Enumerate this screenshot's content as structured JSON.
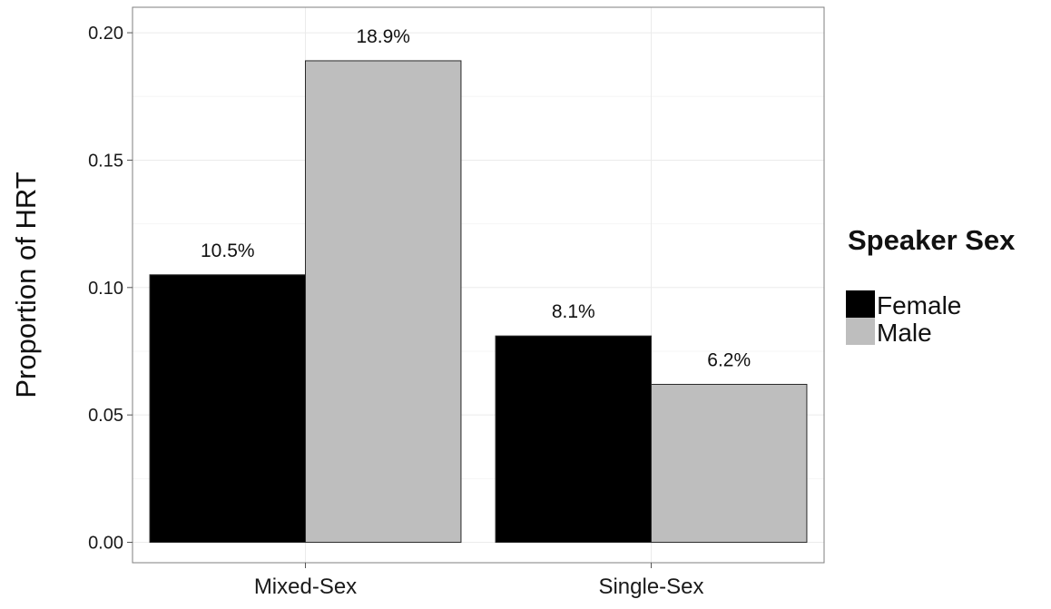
{
  "chart_data": {
    "type": "bar",
    "title": "",
    "xlabel": "",
    "ylabel": "Proportion of HRT",
    "categories": [
      "Mixed-Sex",
      "Single-Sex"
    ],
    "series": [
      {
        "name": "Female",
        "values": [
          0.105,
          0.081
        ],
        "labels": [
          "10.5%",
          "8.1%"
        ],
        "color": "#000000"
      },
      {
        "name": "Male",
        "values": [
          0.189,
          0.062
        ],
        "labels": [
          "18.9%",
          "6.2%"
        ],
        "color": "#bebebe"
      }
    ],
    "ylim": [
      -0.008,
      0.21
    ],
    "yticks": [
      0.0,
      0.05,
      0.1,
      0.15,
      0.2
    ],
    "ytick_labels": [
      "0.00",
      "0.05",
      "0.10",
      "0.15",
      "0.20"
    ],
    "grid": true,
    "legend": {
      "title": "Speaker Sex",
      "position": "right",
      "entries": [
        "Female",
        "Male"
      ]
    }
  }
}
